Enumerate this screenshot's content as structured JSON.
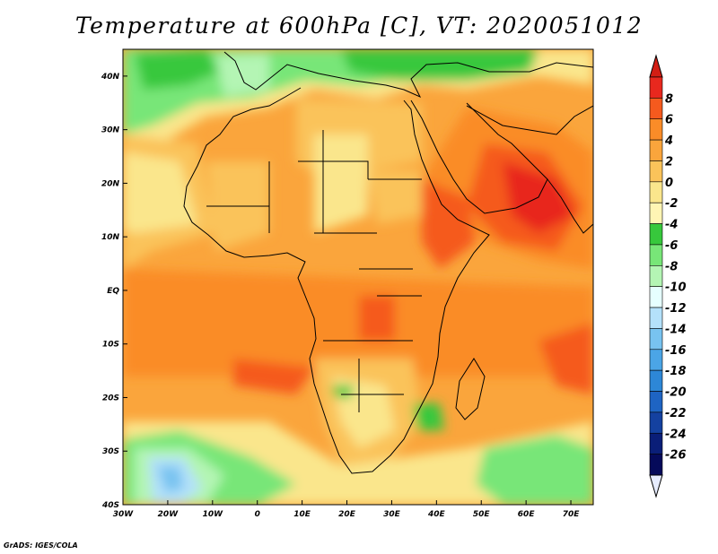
{
  "title": "Temperature at 600hPa [C], VT: 2020051012",
  "credit": "GrADS: IGES/COLA",
  "map": {
    "lon_range": [
      -30,
      75
    ],
    "lat_range": [
      -40,
      45
    ],
    "lon_ticks": [
      {
        "lon": -30,
        "label": "30W"
      },
      {
        "lon": -20,
        "label": "20W"
      },
      {
        "lon": -10,
        "label": "10W"
      },
      {
        "lon": 0,
        "label": "0"
      },
      {
        "lon": 10,
        "label": "10E"
      },
      {
        "lon": 20,
        "label": "20E"
      },
      {
        "lon": 30,
        "label": "30E"
      },
      {
        "lon": 40,
        "label": "40E"
      },
      {
        "lon": 50,
        "label": "50E"
      },
      {
        "lon": 60,
        "label": "60E"
      },
      {
        "lon": 70,
        "label": "70E"
      }
    ],
    "lat_ticks": [
      {
        "lat": 40,
        "label": "40N"
      },
      {
        "lat": 30,
        "label": "30N"
      },
      {
        "lat": 20,
        "label": "20N"
      },
      {
        "lat": 10,
        "label": "10N"
      },
      {
        "lat": 0,
        "label": "EQ"
      },
      {
        "lat": -10,
        "label": "10S"
      },
      {
        "lat": -20,
        "label": "20S"
      },
      {
        "lat": -30,
        "label": "30S"
      },
      {
        "lat": -40,
        "label": "40S"
      }
    ]
  },
  "colorbar": {
    "labels": [
      "8",
      "6",
      "4",
      "2",
      "0",
      "-2",
      "-4",
      "-6",
      "-8",
      "-10",
      "-12",
      "-14",
      "-16",
      "-18",
      "-20",
      "-22",
      "-24",
      "-26"
    ],
    "colors": [
      "#e8281e",
      "#f55a1e",
      "#fa8c28",
      "#faa53c",
      "#fac35a",
      "#fae68c",
      "#fff5b4",
      "#37c83c",
      "#78e678",
      "#b4f5b4",
      "#e6ffff",
      "#b4e1fa",
      "#78c3f0",
      "#4ba5e6",
      "#2d87d7",
      "#1e64c3",
      "#1441a0",
      "#0a1e78",
      "#050a5a"
    ],
    "over_color": "#d21e14",
    "under_color": "#e6ecff"
  }
}
